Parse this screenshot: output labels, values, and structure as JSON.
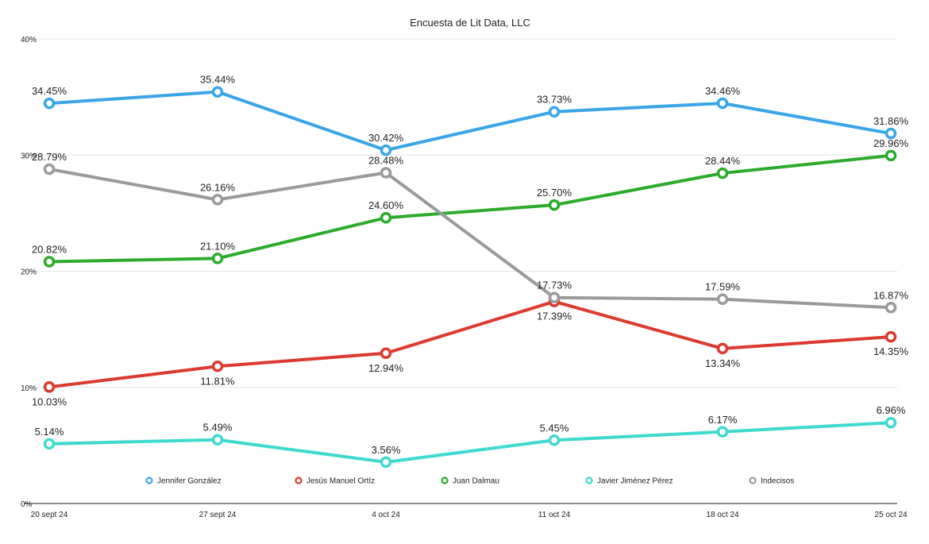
{
  "chart_data": {
    "type": "line",
    "title": "Encuesta de Lit Data, LLC",
    "categories": [
      "20 sept 24",
      "27 sept 24",
      "4 oct 24",
      "11 oct 24",
      "18 oct 24",
      "25 oct 24"
    ],
    "ylim": [
      0,
      40
    ],
    "y_ticks": [
      0,
      10,
      20,
      30,
      40
    ],
    "y_tick_labels": [
      "0%",
      "10%",
      "20%",
      "30%",
      "40%"
    ],
    "grid": true,
    "legend_position": "bottom",
    "xlabel": "",
    "ylabel": "",
    "series": [
      {
        "name": "Jennifer González",
        "color": "#3aa5e6",
        "values": [
          34.45,
          35.44,
          30.42,
          33.73,
          34.46,
          31.86
        ],
        "labels": [
          "34.45%",
          "35.44%",
          "30.42%",
          "33.73%",
          "34.46%",
          "31.86%"
        ],
        "label_pos": [
          "above",
          "above",
          "above",
          "above",
          "above",
          "above"
        ]
      },
      {
        "name": "Jesús Manuel Ortíz",
        "color": "#dc3a2f",
        "values": [
          10.03,
          11.81,
          12.94,
          17.39,
          13.34,
          14.35
        ],
        "labels": [
          "10.03%",
          "11.81%",
          "12.94%",
          "17.39%",
          "13.34%",
          "14.35%"
        ],
        "label_pos": [
          "below",
          "below",
          "below",
          "below",
          "below",
          "below"
        ]
      },
      {
        "name": "Juan Dalmau",
        "color": "#2cab2c",
        "values": [
          20.82,
          21.1,
          24.6,
          25.7,
          28.44,
          29.96
        ],
        "labels": [
          "20.82%",
          "21.10%",
          "24.60%",
          "25.70%",
          "28.44%",
          "29.96%"
        ],
        "label_pos": [
          "above",
          "above",
          "above",
          "above",
          "above",
          "above"
        ]
      },
      {
        "name": "Javier Jiménez Pérez",
        "color": "#3fd9cf",
        "values": [
          5.14,
          5.49,
          3.56,
          5.45,
          6.17,
          6.96
        ],
        "labels": [
          "5.14%",
          "5.49%",
          "3.56%",
          "5.45%",
          "6.17%",
          "6.96%"
        ],
        "label_pos": [
          "above",
          "above",
          "above",
          "above",
          "above",
          "above"
        ]
      },
      {
        "name": "Indecisos",
        "color": "#9a9a9a",
        "values": [
          28.79,
          26.16,
          28.48,
          17.73,
          17.59,
          16.87
        ],
        "labels": [
          "28.79%",
          "26.16%",
          "28.48%",
          "17.73%",
          "17.59%",
          "16.87%"
        ],
        "label_pos": [
          "above",
          "above",
          "above",
          "above",
          "above",
          "above"
        ]
      }
    ]
  }
}
